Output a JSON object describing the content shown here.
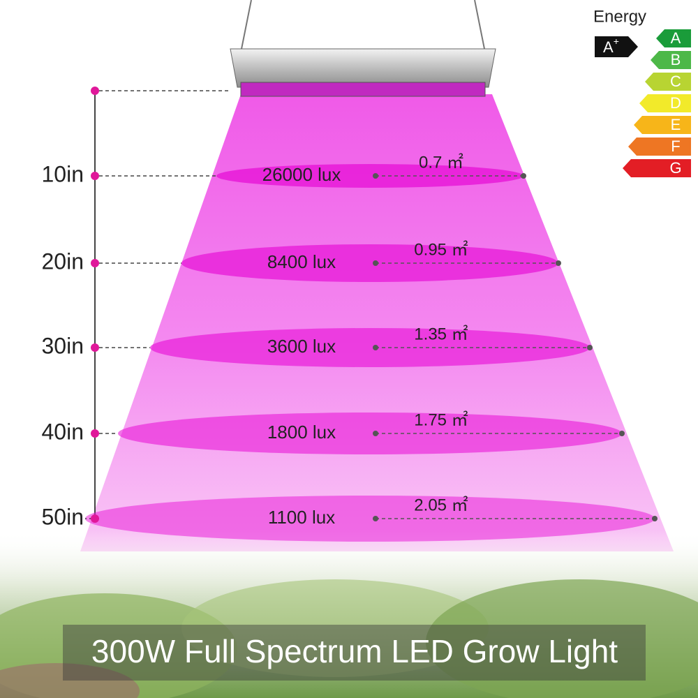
{
  "energy_label": {
    "title": "Energy",
    "rating": "A",
    "rating_sup": "+",
    "grades": [
      "A",
      "B",
      "C",
      "D",
      "E",
      "F",
      "G"
    ]
  },
  "levels": [
    {
      "distance": "10in",
      "lux": "26000 lux",
      "area": "0.7 ㎡"
    },
    {
      "distance": "20in",
      "lux": "8400 lux",
      "area": "0.95 ㎡"
    },
    {
      "distance": "30in",
      "lux": "3600 lux",
      "area": "1.35 ㎡"
    },
    {
      "distance": "40in",
      "lux": "1800 lux",
      "area": "1.75 ㎡"
    },
    {
      "distance": "50in",
      "lux": "1100 lux",
      "area": "2.05 ㎡"
    }
  ],
  "title": "300W Full Spectrum LED Grow Light"
}
